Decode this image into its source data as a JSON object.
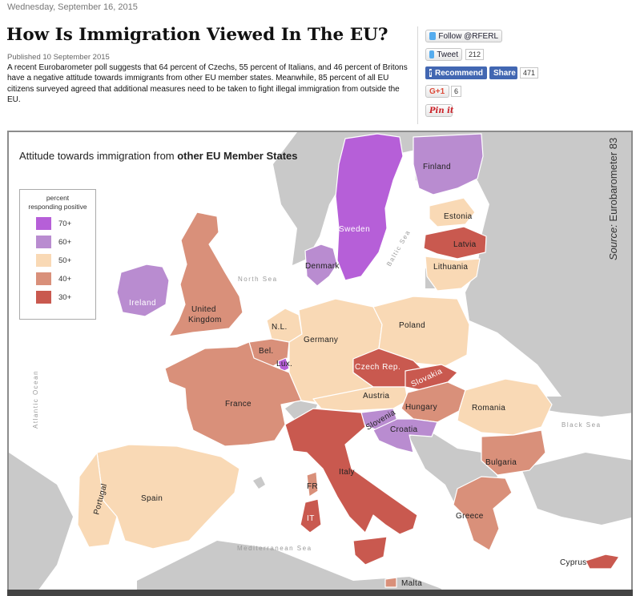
{
  "header": {
    "date": "Wednesday, September 16, 2015",
    "title": "How Is Immigration Viewed In The EU?",
    "published": "Published 10 September 2015",
    "lead": "A recent Eurobarometer poll suggests that 64 percent of Czechs, 55 percent of Italians, and 46 percent of Britons have a negative attitude towards immigrants from other EU member states. Meanwhile, 85 percent of all EU citizens surveyed agreed that additional measures need to be taken to fight illegal immigration from outside the EU."
  },
  "social": {
    "follow_label": "Follow @RFERL",
    "tweet_label": "Tweet",
    "tweet_count": "212",
    "recommend_label": "Recommend",
    "share_label": "Share",
    "fb_count": "471",
    "gplus_label": "G+1",
    "gplus_count": "6",
    "pin_label": "Pin it"
  },
  "map": {
    "title_prefix": "Attitude towards immigration from ",
    "title_bold": "other EU Member States",
    "source_label": "Source:",
    "source_value": "Eurobarometer 83",
    "legend": {
      "title_line1": "percent",
      "title_line2": "responding positive",
      "items": [
        {
          "label": "70+",
          "color": "#b65fd8"
        },
        {
          "label": "60+",
          "color": "#b98cd0"
        },
        {
          "label": "50+",
          "color": "#f9d9b5"
        },
        {
          "label": "40+",
          "color": "#d9907a"
        },
        {
          "label": "30+",
          "color": "#c9594f"
        }
      ]
    },
    "colors": {
      "sea": "#ffffff",
      "non_eu": "#c9c9c9",
      "border": "#ffffff"
    },
    "seas": {
      "north_sea": "North Sea",
      "baltic_sea": "Baltic Sea",
      "atlantic": "Atlantic Ocean",
      "black_sea": "Black Sea",
      "mediterranean": "Mediterranean Sea"
    },
    "countries": {
      "sweden": {
        "name": "Sweden",
        "band": "70+"
      },
      "finland": {
        "name": "Finland",
        "band": "60+"
      },
      "estonia": {
        "name": "Estonia",
        "band": "50+"
      },
      "latvia": {
        "name": "Latvia",
        "band": "30+"
      },
      "lithuania": {
        "name": "Lithuania",
        "band": "50+"
      },
      "denmark": {
        "name": "Denmark",
        "band": "60+"
      },
      "ireland": {
        "name": "Ireland",
        "band": "60+"
      },
      "uk": {
        "name": "United Kingdom",
        "band": "40+"
      },
      "netherlands": {
        "name": "N.L.",
        "band": "50+"
      },
      "belgium": {
        "name": "Bel.",
        "band": "40+"
      },
      "luxembourg": {
        "name": "Lux.",
        "band": "70+"
      },
      "germany": {
        "name": "Germany",
        "band": "50+"
      },
      "poland": {
        "name": "Poland",
        "band": "50+"
      },
      "czech": {
        "name": "Czech Rep.",
        "band": "30+"
      },
      "slovakia": {
        "name": "Slovakia",
        "band": "30+"
      },
      "austria": {
        "name": "Austria",
        "band": "50+"
      },
      "hungary": {
        "name": "Hungary",
        "band": "40+"
      },
      "slovenia": {
        "name": "Slovenia",
        "band": "60+"
      },
      "croatia": {
        "name": "Croatia",
        "band": "60+"
      },
      "romania": {
        "name": "Romania",
        "band": "50+"
      },
      "bulgaria": {
        "name": "Bulgaria",
        "band": "40+"
      },
      "greece": {
        "name": "Greece",
        "band": "40+"
      },
      "cyprus": {
        "name": "Cyprus",
        "band": "30+"
      },
      "france": {
        "name": "France",
        "band": "40+"
      },
      "france_corsica": {
        "name": "FR",
        "band": "40+"
      },
      "spain": {
        "name": "Spain",
        "band": "50+"
      },
      "portugal": {
        "name": "Portugal",
        "band": "50+"
      },
      "italy": {
        "name": "Italy",
        "band": "30+"
      },
      "italy_sardinia": {
        "name": "IT",
        "band": "30+"
      },
      "malta": {
        "name": "Malta",
        "band": "40+"
      }
    }
  }
}
